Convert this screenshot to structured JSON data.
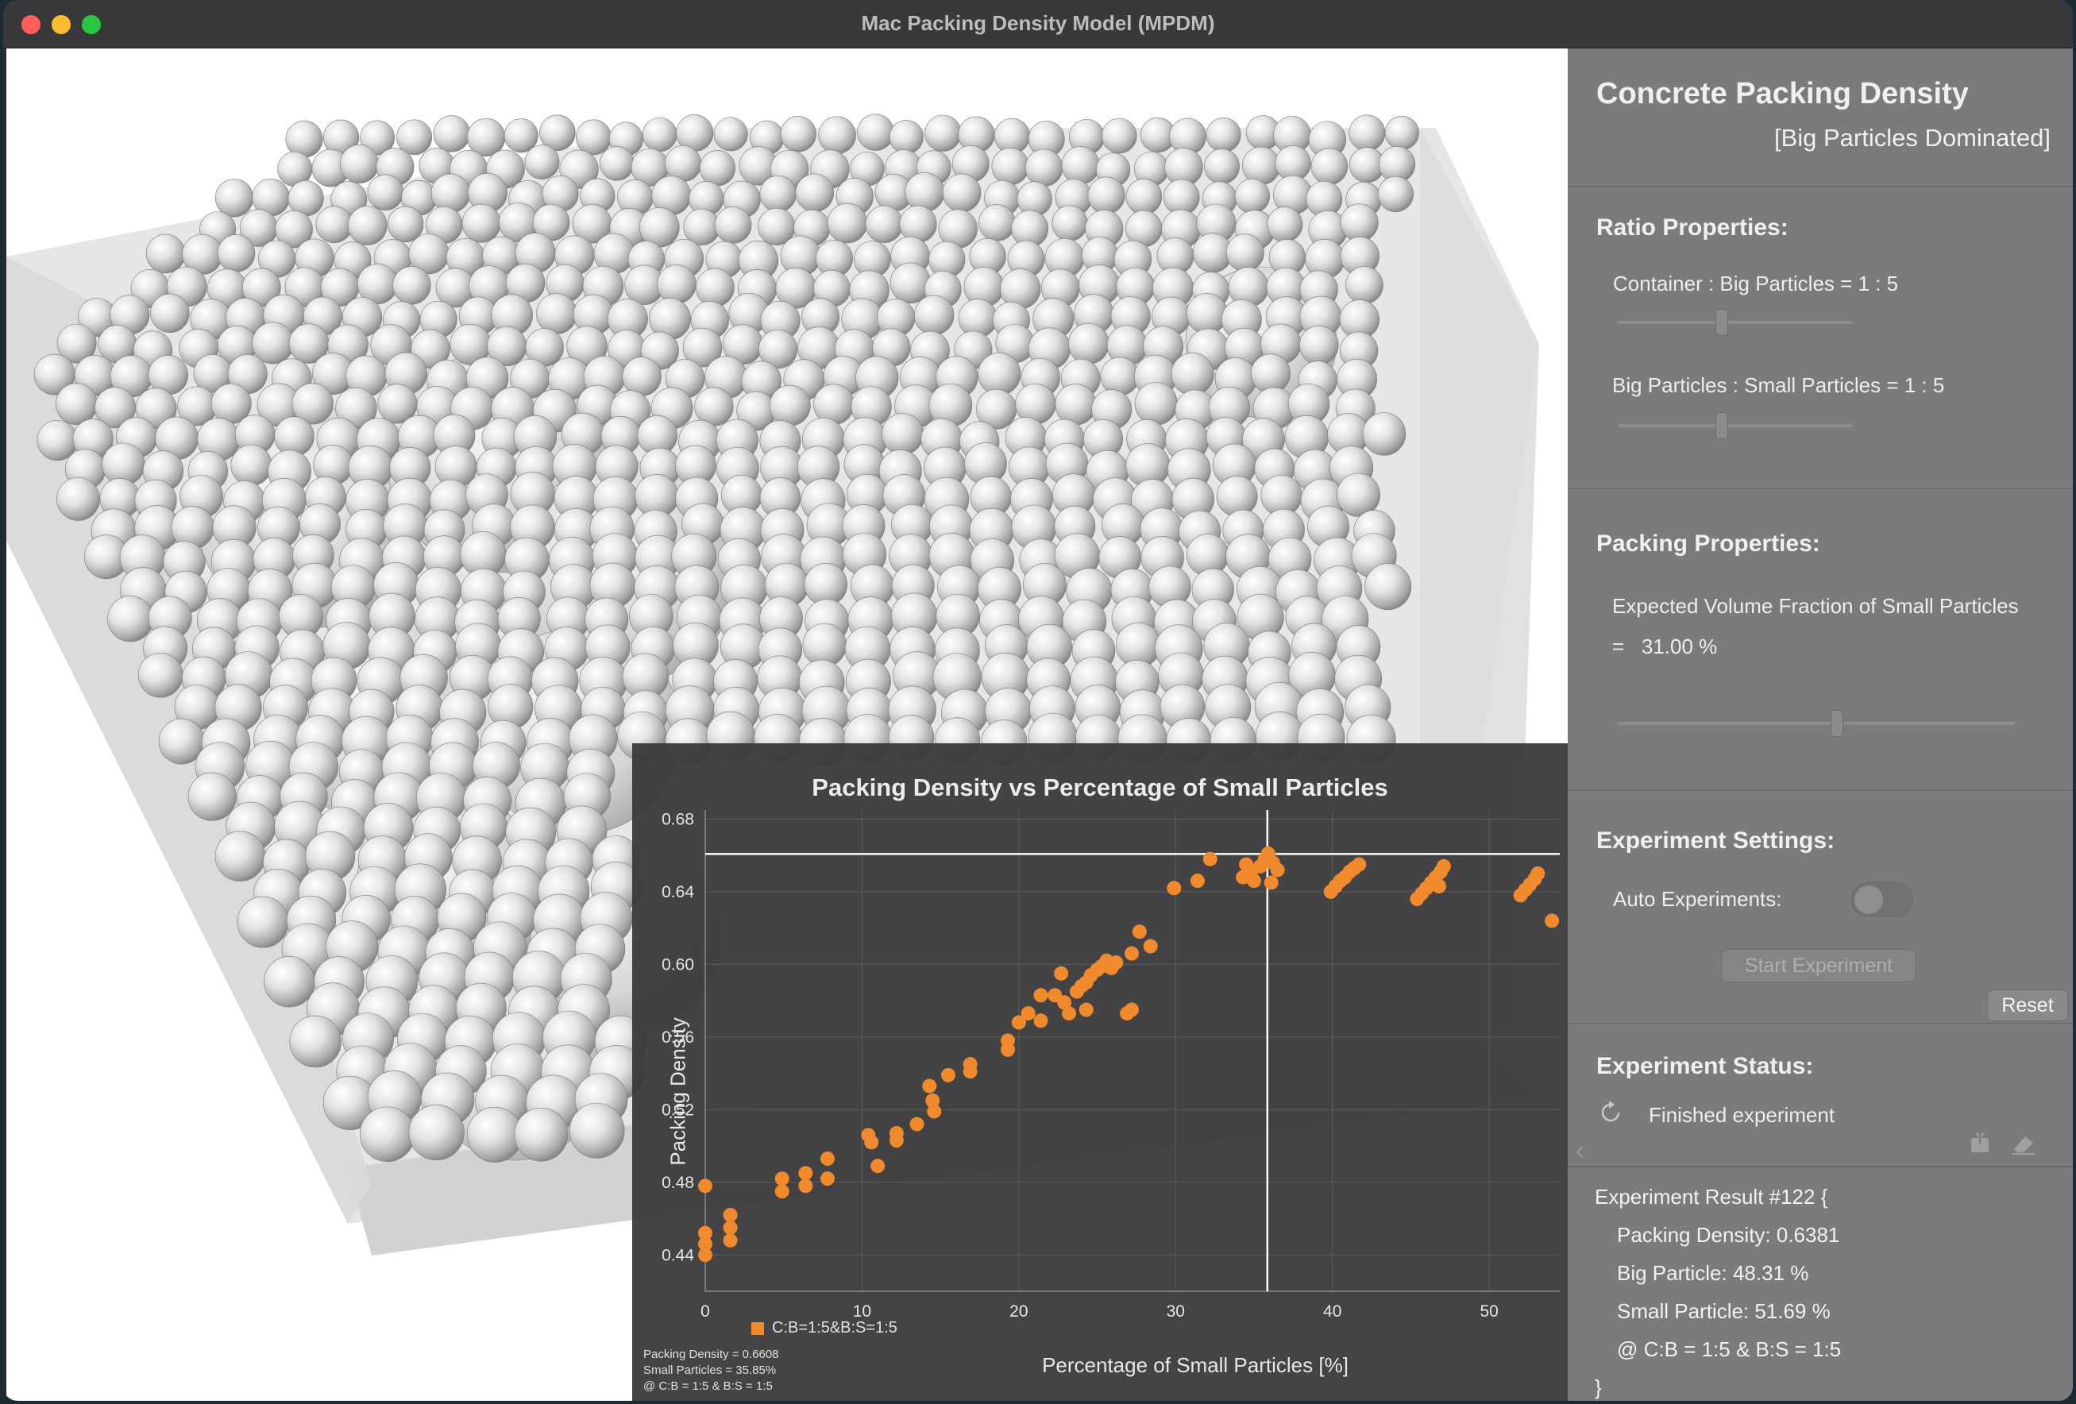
{
  "window": {
    "title": "Mac Packing Density Model (MPDM)"
  },
  "chart_title": "Packing Density vs Percentage of Small Particles",
  "readout": {
    "line1": "Packing Density = 0.6608",
    "line2": "Small Particles = 35.85%",
    "line3": "@ C:B = 1:5 & B:S = 1:5"
  },
  "chart_data": {
    "type": "scatter",
    "title": "Packing Density vs Percentage of Small Particles",
    "xlabel": "Percentage of Small Particles [%]",
    "ylabel": "Packing Density",
    "xlim": [
      0,
      54.5
    ],
    "ylim": [
      0.42,
      0.685
    ],
    "xticks": [
      0,
      10,
      20,
      30,
      40,
      50
    ],
    "yticks": [
      0.44,
      0.48,
      0.52,
      0.56,
      0.6,
      0.64,
      0.68
    ],
    "ytick_labels": [
      "0.44",
      "0.48",
      "0.52",
      "0.56",
      "0.60",
      "0.64",
      "0.68"
    ],
    "grid": true,
    "legend_position": "bottom-left",
    "crosshair": {
      "x": 35.85,
      "y": 0.6608
    },
    "series": [
      {
        "name": "C:B=1:5&B:S=1:5",
        "color": "#f08a2c",
        "points": [
          [
            0.0,
            0.478
          ],
          [
            0.0,
            0.452
          ],
          [
            0.0,
            0.446
          ],
          [
            0.0,
            0.44
          ],
          [
            1.6,
            0.462
          ],
          [
            1.6,
            0.455
          ],
          [
            1.6,
            0.448
          ],
          [
            4.9,
            0.482
          ],
          [
            4.9,
            0.475
          ],
          [
            6.4,
            0.485
          ],
          [
            6.4,
            0.478
          ],
          [
            7.8,
            0.493
          ],
          [
            7.8,
            0.482
          ],
          [
            10.4,
            0.506
          ],
          [
            10.6,
            0.502
          ],
          [
            11.0,
            0.489
          ],
          [
            12.2,
            0.507
          ],
          [
            12.2,
            0.503
          ],
          [
            13.5,
            0.512
          ],
          [
            14.3,
            0.533
          ],
          [
            14.5,
            0.525
          ],
          [
            14.6,
            0.519
          ],
          [
            15.5,
            0.539
          ],
          [
            16.9,
            0.545
          ],
          [
            16.9,
            0.541
          ],
          [
            19.3,
            0.558
          ],
          [
            19.3,
            0.553
          ],
          [
            20.0,
            0.568
          ],
          [
            20.6,
            0.573
          ],
          [
            21.4,
            0.569
          ],
          [
            21.4,
            0.583
          ],
          [
            22.3,
            0.583
          ],
          [
            22.7,
            0.595
          ],
          [
            22.9,
            0.579
          ],
          [
            23.2,
            0.573
          ],
          [
            23.7,
            0.585
          ],
          [
            24.0,
            0.588
          ],
          [
            24.3,
            0.575
          ],
          [
            24.3,
            0.59
          ],
          [
            24.6,
            0.594
          ],
          [
            25.0,
            0.597
          ],
          [
            25.3,
            0.599
          ],
          [
            25.6,
            0.602
          ],
          [
            25.9,
            0.598
          ],
          [
            26.2,
            0.601
          ],
          [
            26.9,
            0.573
          ],
          [
            27.2,
            0.575
          ],
          [
            27.2,
            0.606
          ],
          [
            27.7,
            0.618
          ],
          [
            28.4,
            0.61
          ],
          [
            29.9,
            0.642
          ],
          [
            31.4,
            0.646
          ],
          [
            32.2,
            0.658
          ],
          [
            34.3,
            0.648
          ],
          [
            34.5,
            0.655
          ],
          [
            34.8,
            0.651
          ],
          [
            35.0,
            0.646
          ],
          [
            35.4,
            0.654
          ],
          [
            35.7,
            0.658
          ],
          [
            35.9,
            0.661
          ],
          [
            36.2,
            0.656
          ],
          [
            36.1,
            0.645
          ],
          [
            36.5,
            0.652
          ],
          [
            39.9,
            0.64
          ],
          [
            40.2,
            0.643
          ],
          [
            40.5,
            0.646
          ],
          [
            40.8,
            0.648
          ],
          [
            41.1,
            0.651
          ],
          [
            41.4,
            0.653
          ],
          [
            41.7,
            0.655
          ],
          [
            45.4,
            0.636
          ],
          [
            45.7,
            0.639
          ],
          [
            46.0,
            0.642
          ],
          [
            46.3,
            0.645
          ],
          [
            46.6,
            0.648
          ],
          [
            46.9,
            0.651
          ],
          [
            47.1,
            0.654
          ],
          [
            46.8,
            0.643
          ],
          [
            52.0,
            0.638
          ],
          [
            52.3,
            0.641
          ],
          [
            52.6,
            0.644
          ],
          [
            52.9,
            0.647
          ],
          [
            53.1,
            0.65
          ],
          [
            54.0,
            0.624
          ]
        ]
      }
    ]
  },
  "panel": {
    "title": "Concrete Packing Density",
    "subtitle": "[Big Particles Dominated]",
    "ratio_heading": "Ratio Properties:",
    "container_ratio_label": "Container : Big Particles = 1 : 5",
    "container_ratio_value": 0.44,
    "big_small_ratio_label": "Big Particles : Small Particles = 1 : 5",
    "big_small_ratio_value": 0.44,
    "packing_heading": "Packing Properties:",
    "volume_fraction_label": "Expected Volume Fraction of Small Particles",
    "volume_fraction_value": "=   31.00 %",
    "volume_fraction_slider": 0.55,
    "experiment_heading": "Experiment Settings:",
    "auto_label": "Auto Experiments:",
    "auto_enabled": false,
    "start_button": "Start Experiment",
    "reset_button": "Reset",
    "status_heading": "Experiment Status:",
    "status_text": "Finished experiment"
  },
  "result": {
    "line1": "Experiment Result #122 {",
    "line2": "Packing Density: 0.6381",
    "line3": "Big Particle: 48.31 %",
    "line4": "Small Particle: 51.69 %",
    "line5": "@ C:B = 1:5 & B:S = 1:5",
    "line6": "}"
  }
}
